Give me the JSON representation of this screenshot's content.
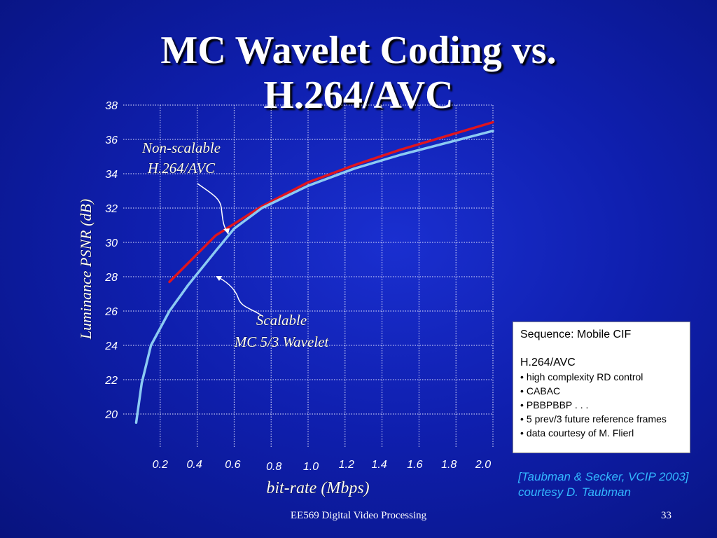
{
  "slide": {
    "title_line1": "MC Wavelet Coding vs.",
    "title_line2": "H.264/AVC",
    "footer_center": "EE569 Digital Video Processing",
    "page_number": "33"
  },
  "infobox": {
    "sequence": "Sequence: Mobile CIF",
    "codec": "H.264/AVC",
    "bullet_char": "•",
    "items": [
      "high complexity RD control",
      "CABAC",
      "PBBPBBP . . .",
      "5 prev/3 future reference frames",
      "data courtesy of M. Flierl"
    ]
  },
  "reference": {
    "line1": "[Taubman & Secker, VCIP 2003]",
    "line2": "courtesy D. Taubman"
  },
  "colors": {
    "red_series": "#e0141e",
    "blue_series": "#8ccaf2",
    "grid": "#e8e8ff",
    "reference_text": "#33b7ff"
  },
  "chart_data": {
    "type": "line",
    "title": "",
    "xlabel": "bit-rate (Mbps)",
    "ylabel": "Luminance PSNR (dB)",
    "xlim": [
      0.0,
      2.0
    ],
    "ylim": [
      18,
      38
    ],
    "grid": true,
    "xticks": [
      0.2,
      0.4,
      0.6,
      0.8,
      1.0,
      1.2,
      1.4,
      1.6,
      1.8,
      2.0
    ],
    "xtick_labels": [
      "0.2",
      "0.4",
      "0.6",
      "0.8",
      "1.0",
      "1.2",
      "1.4",
      "1.6",
      "1.8",
      "2.0"
    ],
    "yticks": [
      20,
      22,
      24,
      26,
      28,
      30,
      32,
      34,
      36,
      38
    ],
    "ytick_labels": [
      "20",
      "22",
      "24",
      "26",
      "28",
      "30",
      "32",
      "34",
      "36",
      "38"
    ],
    "series": [
      {
        "label_line1": "Non-scalable",
        "label_line2": "H.264/AVC",
        "color": "#e0141e",
        "x": [
          0.25,
          0.5,
          0.75,
          1.0,
          1.25,
          1.5,
          1.75,
          2.0
        ],
        "y": [
          27.7,
          30.4,
          32.1,
          33.5,
          34.5,
          35.4,
          36.2,
          37.0
        ]
      },
      {
        "label_line1": "Scalable",
        "label_line2": "MC 5/3 Wavelet",
        "color": "#8ccaf2",
        "x": [
          0.07,
          0.1,
          0.15,
          0.25,
          0.35,
          0.5,
          0.6,
          0.75,
          1.0,
          1.25,
          1.5,
          1.75,
          2.0
        ],
        "y": [
          19.5,
          21.8,
          24.0,
          26.0,
          27.5,
          29.5,
          30.8,
          32.0,
          33.3,
          34.3,
          35.1,
          35.8,
          36.5
        ]
      }
    ]
  }
}
